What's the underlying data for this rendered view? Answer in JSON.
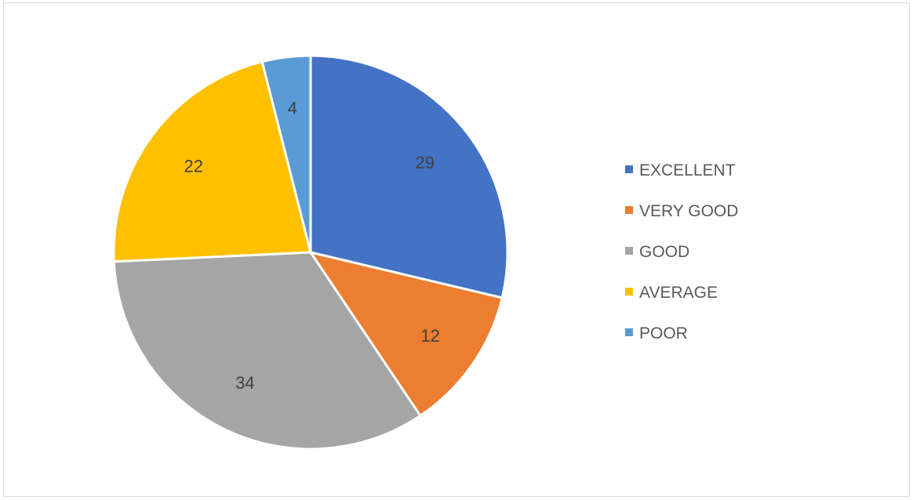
{
  "chart_data": {
    "type": "pie",
    "categories": [
      "EXCELLENT",
      "VERY GOOD",
      "GOOD",
      "AVERAGE",
      "POOR"
    ],
    "values": [
      29,
      12,
      34,
      22,
      4
    ],
    "colors": [
      "#4472c4",
      "#ed7d31",
      "#a5a5a5",
      "#ffc000",
      "#5b9bd5"
    ],
    "start_angle_deg": 0,
    "direction": "clockwise",
    "data_labels": true,
    "legend_position": "right"
  }
}
